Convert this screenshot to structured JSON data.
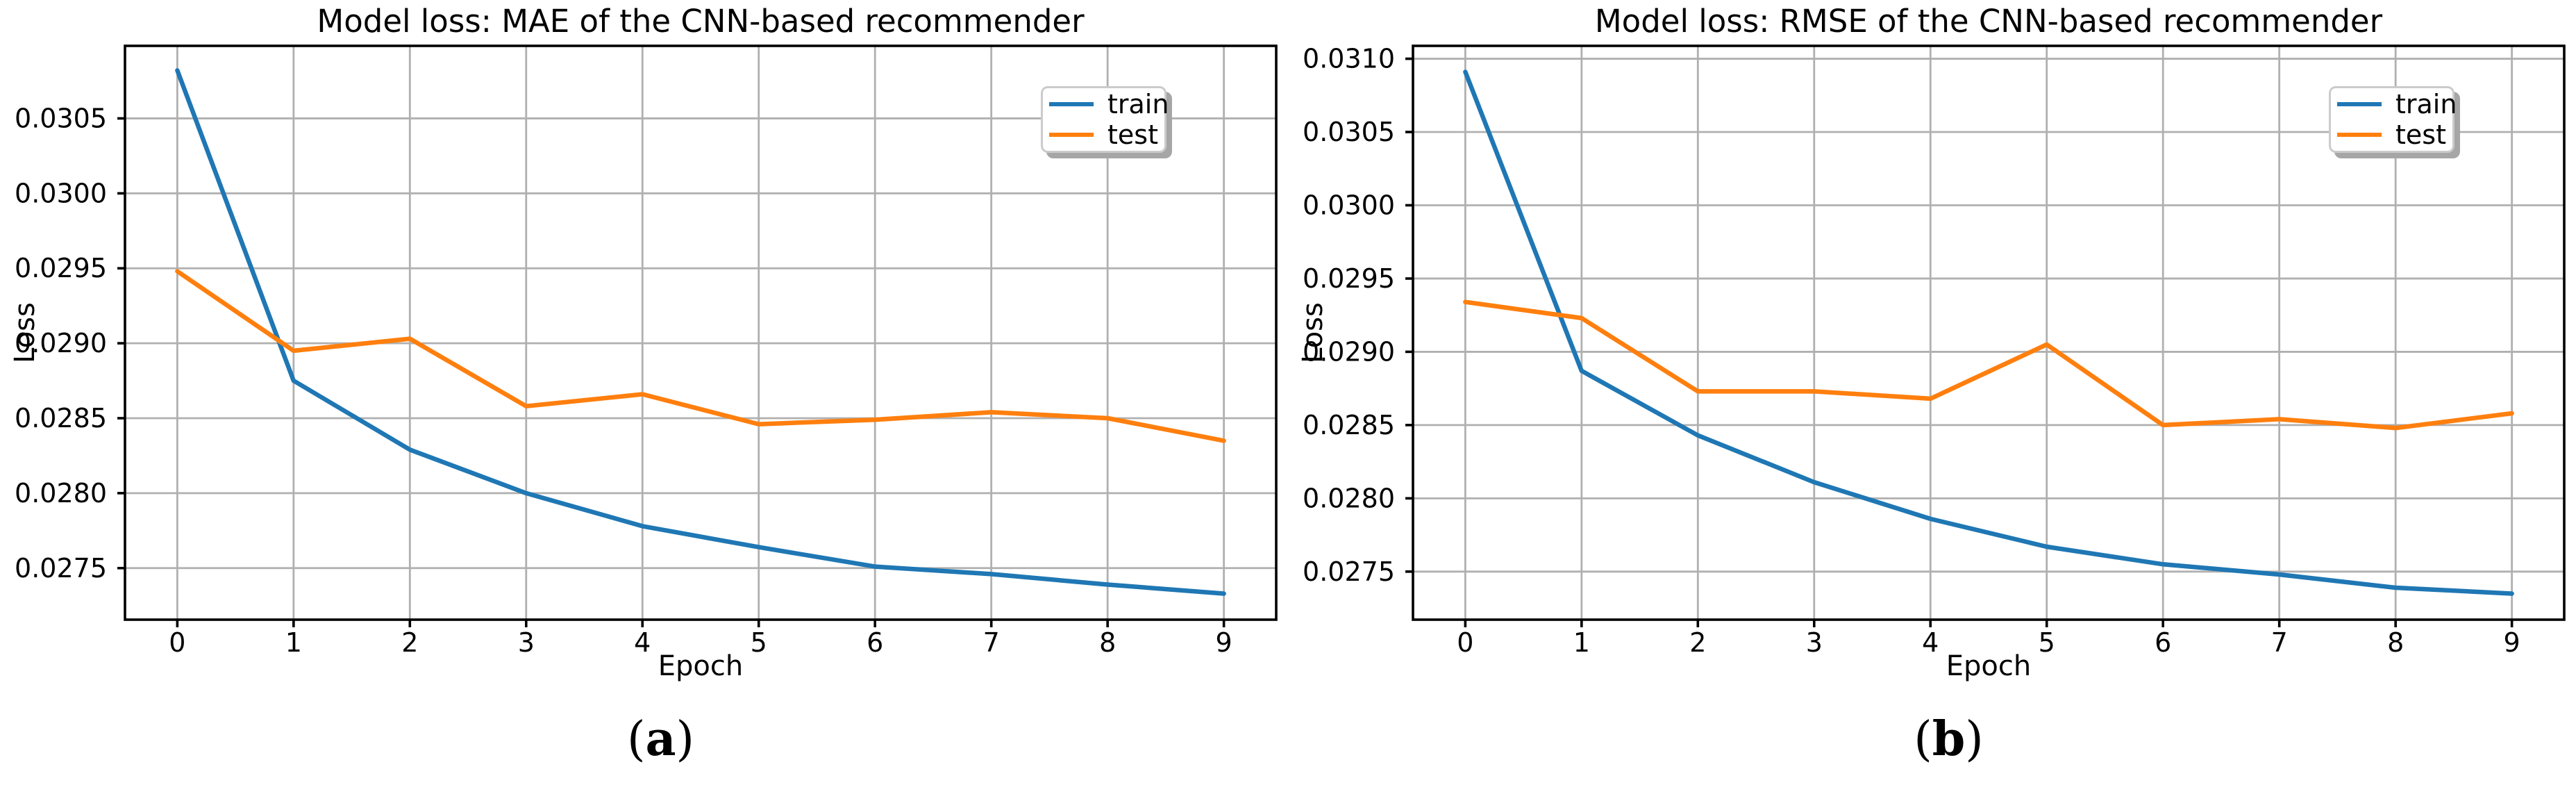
{
  "figure": {
    "background": "#ffffff",
    "text_color": "#000000",
    "grid_color": "#b0b0b0",
    "spine_color": "#000000"
  },
  "chart_data": [
    {
      "type": "line",
      "title": "Model loss: MAE of the CNN-based recommender",
      "xlabel": "Epoch",
      "ylabel": "Loss",
      "caption": {
        "open": "(",
        "letter": "a",
        "close": ")"
      },
      "grid": true,
      "legend_position": "upper right",
      "x": [
        0,
        1,
        2,
        3,
        4,
        5,
        6,
        7,
        8,
        9
      ],
      "x_ticks": [
        0,
        1,
        2,
        3,
        4,
        5,
        6,
        7,
        8,
        9
      ],
      "x_tick_labels": [
        "0",
        "1",
        "2",
        "3",
        "4",
        "5",
        "6",
        "7",
        "8",
        "9"
      ],
      "y_ticks": [
        0.0275,
        0.028,
        0.0285,
        0.029,
        0.0295,
        0.03,
        0.0305
      ],
      "y_tick_labels": [
        "0.0275",
        "0.0280",
        "0.0285",
        "0.0290",
        "0.0295",
        "0.0300",
        "0.0305"
      ],
      "xlim": [
        -0.45,
        9.45
      ],
      "ylim": [
        0.027156,
        0.030984
      ],
      "series": [
        {
          "name": "train",
          "color": "#1f77b4",
          "values": [
            0.03082,
            0.02875,
            0.02829,
            0.028,
            0.02778,
            0.02764,
            0.02751,
            0.02746,
            0.02739,
            0.02733
          ]
        },
        {
          "name": "test",
          "color": "#ff7f0e",
          "values": [
            0.02948,
            0.02895,
            0.02903,
            0.02858,
            0.02866,
            0.02846,
            0.02849,
            0.02854,
            0.0285,
            0.02835
          ]
        }
      ]
    },
    {
      "type": "line",
      "title": "Model loss: RMSE of the CNN-based recommender",
      "xlabel": "Epoch",
      "ylabel": "Loss",
      "caption": {
        "open": "(",
        "letter": "b",
        "close": ")"
      },
      "grid": true,
      "legend_position": "upper right",
      "x": [
        0,
        1,
        2,
        3,
        4,
        5,
        6,
        7,
        8,
        9
      ],
      "x_ticks": [
        0,
        1,
        2,
        3,
        4,
        5,
        6,
        7,
        8,
        9
      ],
      "x_tick_labels": [
        "0",
        "1",
        "2",
        "3",
        "4",
        "5",
        "6",
        "7",
        "8",
        "9"
      ],
      "y_ticks": [
        0.0275,
        0.028,
        0.0285,
        0.029,
        0.0295,
        0.03,
        0.0305,
        0.031
      ],
      "y_tick_labels": [
        "0.0275",
        "0.0280",
        "0.0285",
        "0.0290",
        "0.0295",
        "0.0300",
        "0.0305",
        "0.0310"
      ],
      "xlim": [
        -0.45,
        9.45
      ],
      "ylim": [
        0.027172,
        0.031088
      ],
      "series": [
        {
          "name": "train",
          "color": "#1f77b4",
          "values": [
            0.03091,
            0.02887,
            0.02843,
            0.02811,
            0.02786,
            0.02767,
            0.02755,
            0.02748,
            0.02739,
            0.02735
          ]
        },
        {
          "name": "test",
          "color": "#ff7f0e",
          "values": [
            0.02934,
            0.02923,
            0.02873,
            0.02873,
            0.02868,
            0.02905,
            0.0285,
            0.02854,
            0.02848,
            0.02858
          ]
        }
      ]
    }
  ]
}
